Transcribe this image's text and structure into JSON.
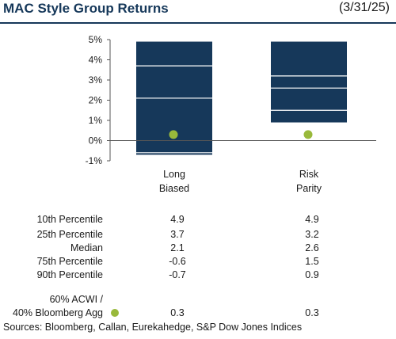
{
  "header": {
    "title": "MAC Style Group Returns",
    "date": "(3/31/25)"
  },
  "colors": {
    "bar": "#16385a",
    "benchmark_dot": "#99b93b",
    "axis": "#555555"
  },
  "chart_data": {
    "type": "box",
    "title": "MAC Style Group Returns",
    "ylim": [
      -1,
      5
    ],
    "y_ticks": [
      "-1%",
      "0%",
      "1%",
      "2%",
      "3%",
      "4%",
      "5%"
    ],
    "y_tick_values": [
      -1,
      0,
      1,
      2,
      3,
      4,
      5
    ],
    "categories": [
      {
        "line1": "Long",
        "line2": "Biased"
      },
      {
        "line1": "Risk",
        "line2": "Parity"
      }
    ],
    "series": [
      {
        "name": "10th Percentile",
        "values": [
          4.9,
          4.9
        ]
      },
      {
        "name": "25th Percentile",
        "values": [
          3.7,
          3.2
        ]
      },
      {
        "name": "Median",
        "values": [
          2.1,
          2.6
        ]
      },
      {
        "name": "75th Percentile",
        "values": [
          -0.6,
          1.5
        ]
      },
      {
        "name": "90th Percentile",
        "values": [
          -0.7,
          0.9
        ]
      }
    ],
    "benchmark": {
      "name_line1": "60% ACWI /",
      "name_line2": "40% Bloomberg Agg",
      "values": [
        0.3,
        0.3
      ]
    }
  },
  "table": {
    "rows": [
      {
        "label": "10th Percentile",
        "values": [
          "4.9",
          "4.9"
        ]
      },
      {
        "label": "25th Percentile",
        "values": [
          "3.7",
          "3.2"
        ]
      },
      {
        "label": "Median",
        "values": [
          "2.1",
          "2.6"
        ]
      },
      {
        "label": "75th Percentile",
        "values": [
          "-0.6",
          "1.5"
        ]
      },
      {
        "label": "90th Percentile",
        "values": [
          "-0.7",
          "0.9"
        ]
      }
    ],
    "benchmark_values": [
      "0.3",
      "0.3"
    ]
  },
  "sources": "Sources: Bloomberg, Callan, Eurekahedge, S&P Dow Jones Indices"
}
